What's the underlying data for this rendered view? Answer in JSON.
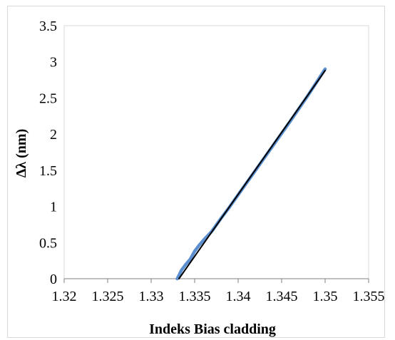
{
  "chart_data": {
    "type": "line",
    "title": "",
    "xlabel": "Indeks Bias cladding",
    "ylabel": "Δλ (nm)",
    "xlim": [
      1.32,
      1.355
    ],
    "ylim": [
      0,
      3.5
    ],
    "x_ticks": [
      "1.32",
      "1.325",
      "1.33",
      "1.335",
      "1.34",
      "1.345",
      "1.35",
      "1.355"
    ],
    "y_ticks": [
      "0",
      "0.5",
      "1",
      "1.5",
      "2",
      "2.5",
      "3",
      "3.5"
    ],
    "grid": false,
    "legend": "none",
    "series": [
      {
        "color": "#5b8fd0",
        "x": [
          1.333,
          1.3335,
          1.334,
          1.3345,
          1.335,
          1.3355,
          1.336,
          1.337,
          1.338,
          1.339,
          1.34,
          1.342,
          1.344,
          1.346,
          1.348,
          1.35
        ],
        "y": [
          0.0,
          0.12,
          0.2,
          0.27,
          0.38,
          0.46,
          0.53,
          0.66,
          0.83,
          0.99,
          1.16,
          1.5,
          1.84,
          2.18,
          2.53,
          2.9
        ]
      },
      {
        "color": "#000000",
        "x": [
          1.3332,
          1.35
        ],
        "y": [
          0.0,
          2.88
        ]
      }
    ]
  }
}
